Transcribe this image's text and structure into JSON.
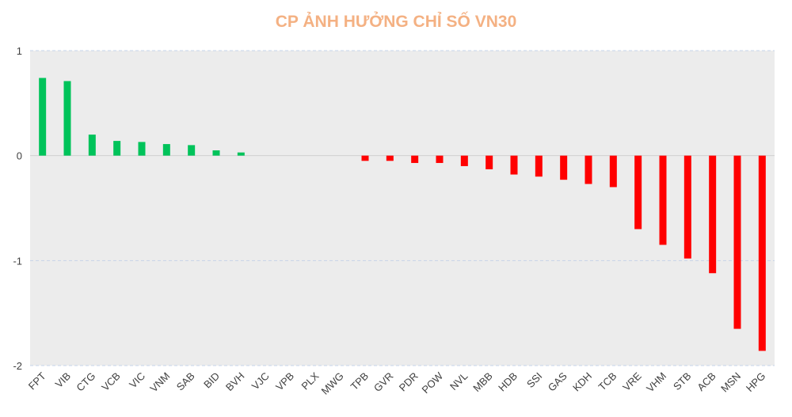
{
  "chart_data": {
    "type": "bar",
    "title": "CP ẢNH HƯỞNG CHỈ SỐ VN30",
    "xlabel": "",
    "ylabel": "",
    "ylim": [
      -2,
      1
    ],
    "yticks": [
      "1",
      "0",
      "-1",
      "-2"
    ],
    "yticks_values": [
      1,
      0,
      -1,
      -2
    ],
    "grid": true,
    "categories": [
      "FPT",
      "VIB",
      "CTG",
      "VCB",
      "VIC",
      "VNM",
      "SAB",
      "BID",
      "BVH",
      "VJC",
      "VPB",
      "PLX",
      "MWG",
      "TPB",
      "GVR",
      "PDR",
      "POW",
      "NVL",
      "MBB",
      "HDB",
      "SSI",
      "GAS",
      "KDH",
      "TCB",
      "VRE",
      "VHM",
      "STB",
      "ACB",
      "MSN",
      "HPG"
    ],
    "values": [
      0.74,
      0.71,
      0.2,
      0.14,
      0.13,
      0.11,
      0.1,
      0.05,
      0.03,
      0,
      0,
      0,
      0,
      -0.05,
      -0.05,
      -0.07,
      -0.07,
      -0.1,
      -0.13,
      -0.18,
      -0.2,
      -0.23,
      -0.27,
      -0.3,
      -0.7,
      -0.85,
      -0.98,
      -1.12,
      -1.65,
      -1.86
    ],
    "colors": {
      "positive": "#00c35a",
      "negative": "#ff0000",
      "title": "#f4b183",
      "plot_background": "#ececec",
      "grid": "#c5d3e8",
      "axis_text": "#404040"
    }
  }
}
